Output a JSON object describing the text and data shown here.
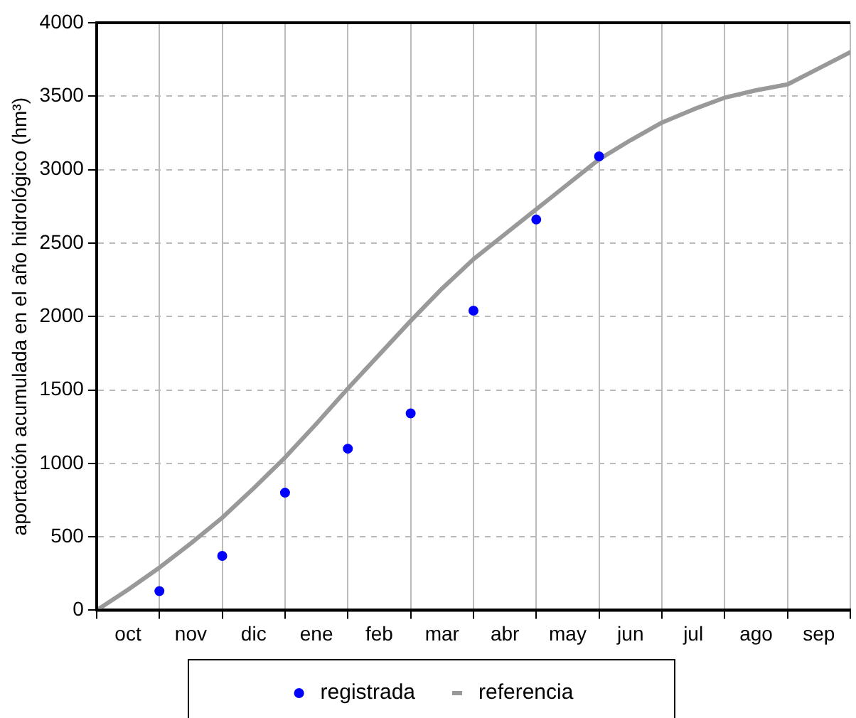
{
  "chart_data": {
    "type": "line",
    "ylabel": "aportación acumulada en el año hidrológico (hm³)",
    "categories": [
      null,
      "oct",
      null,
      "nov",
      null,
      "dic",
      null,
      "ene",
      null,
      "feb",
      null,
      "mar",
      null,
      "abr",
      null,
      "may",
      null,
      "jun",
      null,
      "jul",
      null,
      "ago",
      null,
      "sep",
      null
    ],
    "ylim": [
      0,
      4000
    ],
    "yticks": [
      0,
      500,
      1000,
      1500,
      2000,
      2500,
      3000,
      3500,
      4000
    ],
    "grid": true,
    "legend": "bottom",
    "series": [
      {
        "name": "registrada",
        "type": "scatter",
        "marker": "circle",
        "color": "#0000ff",
        "values": [
          null,
          null,
          130,
          null,
          370,
          null,
          800,
          null,
          1100,
          null,
          1340,
          null,
          2040,
          null,
          2660,
          null,
          3090,
          null,
          null,
          null,
          null,
          null,
          null,
          null,
          null
        ]
      },
      {
        "name": "referencia",
        "marker": "none",
        "line_style": "solid",
        "color": "#999999",
        "values": [
          0,
          140,
          290,
          455,
          630,
          830,
          1040,
          1270,
          1510,
          1740,
          1970,
          2190,
          2390,
          2560,
          2730,
          2900,
          3070,
          3200,
          3320,
          3410,
          3490,
          3540,
          3580,
          3690,
          3800
        ]
      }
    ]
  }
}
